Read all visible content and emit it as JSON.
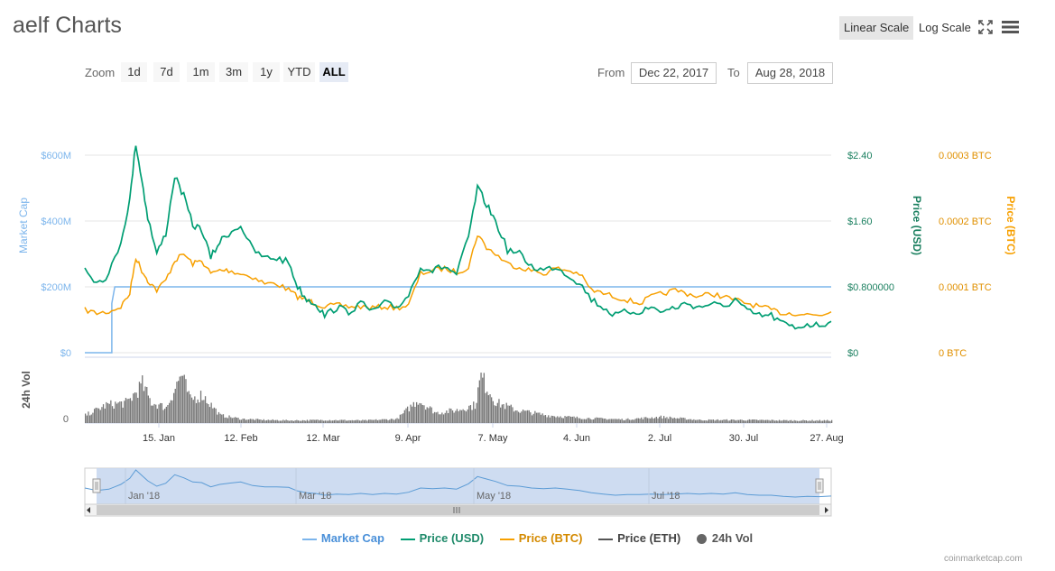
{
  "header": {
    "title": "aelf Charts",
    "linear_scale": "Linear Scale",
    "log_scale": "Log Scale",
    "fullscreen_icon": "fullscreen-icon",
    "menu_icon": "hamburger-menu-icon"
  },
  "zoom": {
    "label": "Zoom",
    "buttons": [
      "1d",
      "7d",
      "1m",
      "3m",
      "1y",
      "YTD",
      "ALL"
    ],
    "active": "ALL"
  },
  "range": {
    "from_label": "From",
    "from_value": "Dec 22, 2017",
    "to_label": "To",
    "to_value": "Aug 28, 2018"
  },
  "colors": {
    "market_cap": "#7cb5ec",
    "price_usd": "#009e73",
    "price_btc": "#f7a000",
    "price_eth": "#555555",
    "volume": "#777777",
    "navigator_fill": "#c6d6ef"
  },
  "chart_data": {
    "type": "line",
    "x_range": [
      "2017-12-22",
      "2018-08-28"
    ],
    "x_ticks": [
      "15. Jan",
      "12. Feb",
      "12. Mar",
      "9. Apr",
      "7. May",
      "4. Jun",
      "2. Jul",
      "30. Jul",
      "27. Aug"
    ],
    "axes": {
      "market_cap": {
        "label": "Market Cap",
        "ticks": [
          "$0",
          "$200M",
          "$400M",
          "$600M"
        ],
        "range": [
          0,
          600
        ]
      },
      "price_usd": {
        "label": "Price (USD)",
        "ticks": [
          "$0",
          "$0.800000",
          "$1.60",
          "$2.40"
        ],
        "range": [
          0,
          2.4
        ]
      },
      "price_btc": {
        "label": "Price (BTC)",
        "ticks": [
          "0 BTC",
          "0.0001 BTC",
          "0.0002 BTC",
          "0.0003 BTC"
        ],
        "range": [
          0,
          0.0003
        ]
      },
      "volume": {
        "label": "24h Vol",
        "ticks": [
          "0"
        ]
      }
    },
    "series": [
      {
        "name": "Price (USD)",
        "axis": "price_usd",
        "x": [
          "2017-12-22",
          "2017-12-26",
          "2017-12-30",
          "2018-01-03",
          "2018-01-06",
          "2018-01-08",
          "2018-01-10",
          "2018-01-12",
          "2018-01-15",
          "2018-01-18",
          "2018-01-21",
          "2018-01-24",
          "2018-01-27",
          "2018-01-30",
          "2018-02-02",
          "2018-02-05",
          "2018-02-08",
          "2018-02-12",
          "2018-02-16",
          "2018-02-20",
          "2018-02-24",
          "2018-02-28",
          "2018-03-03",
          "2018-03-06",
          "2018-03-09",
          "2018-03-12",
          "2018-03-16",
          "2018-03-20",
          "2018-03-24",
          "2018-03-28",
          "2018-04-01",
          "2018-04-05",
          "2018-04-09",
          "2018-04-13",
          "2018-04-17",
          "2018-04-21",
          "2018-04-25",
          "2018-04-29",
          "2018-05-02",
          "2018-05-05",
          "2018-05-08",
          "2018-05-12",
          "2018-05-16",
          "2018-05-20",
          "2018-05-24",
          "2018-05-28",
          "2018-06-01",
          "2018-06-05",
          "2018-06-09",
          "2018-06-13",
          "2018-06-17",
          "2018-06-21",
          "2018-06-25",
          "2018-06-29",
          "2018-07-03",
          "2018-07-07",
          "2018-07-11",
          "2018-07-15",
          "2018-07-19",
          "2018-07-23",
          "2018-07-27",
          "2018-07-31",
          "2018-08-04",
          "2018-08-08",
          "2018-08-12",
          "2018-08-16",
          "2018-08-20",
          "2018-08-24",
          "2018-08-28"
        ],
        "values": [
          1.05,
          0.85,
          0.95,
          1.35,
          1.85,
          2.55,
          2.1,
          1.65,
          1.2,
          1.45,
          2.15,
          1.9,
          1.55,
          1.5,
          1.15,
          1.35,
          1.45,
          1.55,
          1.25,
          1.15,
          1.15,
          1.1,
          0.8,
          0.65,
          0.6,
          0.45,
          0.55,
          0.5,
          0.6,
          0.5,
          0.6,
          0.55,
          0.7,
          1.05,
          1.0,
          1.05,
          0.95,
          1.4,
          2.0,
          1.8,
          1.6,
          1.25,
          1.2,
          1.05,
          1.0,
          1.05,
          0.95,
          0.85,
          0.65,
          0.55,
          0.45,
          0.5,
          0.5,
          0.55,
          0.5,
          0.55,
          0.6,
          0.55,
          0.6,
          0.55,
          0.65,
          0.5,
          0.45,
          0.45,
          0.35,
          0.3,
          0.35,
          0.33,
          0.38
        ]
      },
      {
        "name": "Price (BTC)",
        "axis": "price_btc",
        "x": [
          "2017-12-22",
          "2017-12-26",
          "2017-12-30",
          "2018-01-03",
          "2018-01-06",
          "2018-01-08",
          "2018-01-10",
          "2018-01-12",
          "2018-01-15",
          "2018-01-18",
          "2018-01-21",
          "2018-01-24",
          "2018-01-27",
          "2018-01-30",
          "2018-02-02",
          "2018-02-05",
          "2018-02-08",
          "2018-02-12",
          "2018-02-16",
          "2018-02-20",
          "2018-02-24",
          "2018-02-28",
          "2018-03-03",
          "2018-03-06",
          "2018-03-09",
          "2018-03-12",
          "2018-03-16",
          "2018-03-20",
          "2018-03-24",
          "2018-03-28",
          "2018-04-01",
          "2018-04-05",
          "2018-04-09",
          "2018-04-13",
          "2018-04-17",
          "2018-04-21",
          "2018-04-25",
          "2018-04-29",
          "2018-05-02",
          "2018-05-05",
          "2018-05-08",
          "2018-05-12",
          "2018-05-16",
          "2018-05-20",
          "2018-05-24",
          "2018-05-28",
          "2018-06-01",
          "2018-06-05",
          "2018-06-09",
          "2018-06-13",
          "2018-06-17",
          "2018-06-21",
          "2018-06-25",
          "2018-06-29",
          "2018-07-03",
          "2018-07-07",
          "2018-07-11",
          "2018-07-15",
          "2018-07-19",
          "2018-07-23",
          "2018-07-27",
          "2018-07-31",
          "2018-08-04",
          "2018-08-08",
          "2018-08-12",
          "2018-08-16",
          "2018-08-20",
          "2018-08-24",
          "2018-08-28"
        ],
        "values": [
          6.5e-05,
          6e-05,
          6.2e-05,
          7e-05,
          9e-05,
          0.000145,
          0.000125,
          0.00011,
          9.5e-05,
          0.00011,
          0.00014,
          0.00015,
          0.000135,
          0.00014,
          0.00012,
          0.000125,
          0.000125,
          0.00012,
          0.000115,
          0.000105,
          0.000105,
          9.5e-05,
          8.5e-05,
          8e-05,
          7.5e-05,
          7e-05,
          7.2e-05,
          7e-05,
          7e-05,
          6.8e-05,
          7e-05,
          6.8e-05,
          7.2e-05,
          0.00012,
          0.000125,
          0.000128,
          0.000122,
          0.00013,
          0.00018,
          0.00016,
          0.00015,
          0.000135,
          0.00013,
          0.000125,
          0.00012,
          0.000128,
          0.000125,
          0.00012,
          9.5e-05,
          9e-05,
          8.5e-05,
          8e-05,
          7.5e-05,
          8.5e-05,
          9e-05,
          9.5e-05,
          9e-05,
          8.5e-05,
          9e-05,
          8.5e-05,
          8e-05,
          7.5e-05,
          7e-05,
          6.5e-05,
          6e-05,
          6e-05,
          5.8e-05,
          5.7e-05,
          6.2e-05
        ]
      },
      {
        "name": "Market Cap",
        "axis": "market_cap",
        "x": [
          "2017-12-22",
          "2017-12-31",
          "2017-12-31",
          "2018-01-01",
          "2018-08-28"
        ],
        "values": [
          0,
          0,
          150,
          200,
          200
        ]
      },
      {
        "name": "24h Vol",
        "axis": "volume",
        "x": [
          "2017-12-22",
          "2017-12-29",
          "2018-01-05",
          "2018-01-10",
          "2018-01-13",
          "2018-01-18",
          "2018-01-23",
          "2018-01-26",
          "2018-01-30",
          "2018-02-05",
          "2018-02-12",
          "2018-02-20",
          "2018-03-01",
          "2018-03-12",
          "2018-03-25",
          "2018-04-05",
          "2018-04-12",
          "2018-04-18",
          "2018-04-25",
          "2018-05-01",
          "2018-05-03",
          "2018-05-08",
          "2018-05-15",
          "2018-05-25",
          "2018-06-05",
          "2018-06-20",
          "2018-07-02",
          "2018-07-15",
          "2018-07-30",
          "2018-08-15",
          "2018-08-28"
        ],
        "values": [
          0.15,
          0.35,
          0.4,
          0.75,
          0.4,
          0.3,
          0.95,
          0.45,
          0.55,
          0.15,
          0.08,
          0.06,
          0.05,
          0.06,
          0.05,
          0.08,
          0.45,
          0.2,
          0.25,
          0.35,
          0.9,
          0.4,
          0.25,
          0.15,
          0.1,
          0.07,
          0.12,
          0.06,
          0.06,
          0.05,
          0.05
        ]
      }
    ],
    "navigator": {
      "ticks": [
        "Jan '18",
        "Mar '18",
        "May '18",
        "Jul '18"
      ]
    },
    "legend": [
      "Market Cap",
      "Price (USD)",
      "Price (BTC)",
      "Price (ETH)",
      "24h Vol"
    ],
    "legend_position": "bottom",
    "grid": true
  },
  "credits": "coinmarketcap.com"
}
